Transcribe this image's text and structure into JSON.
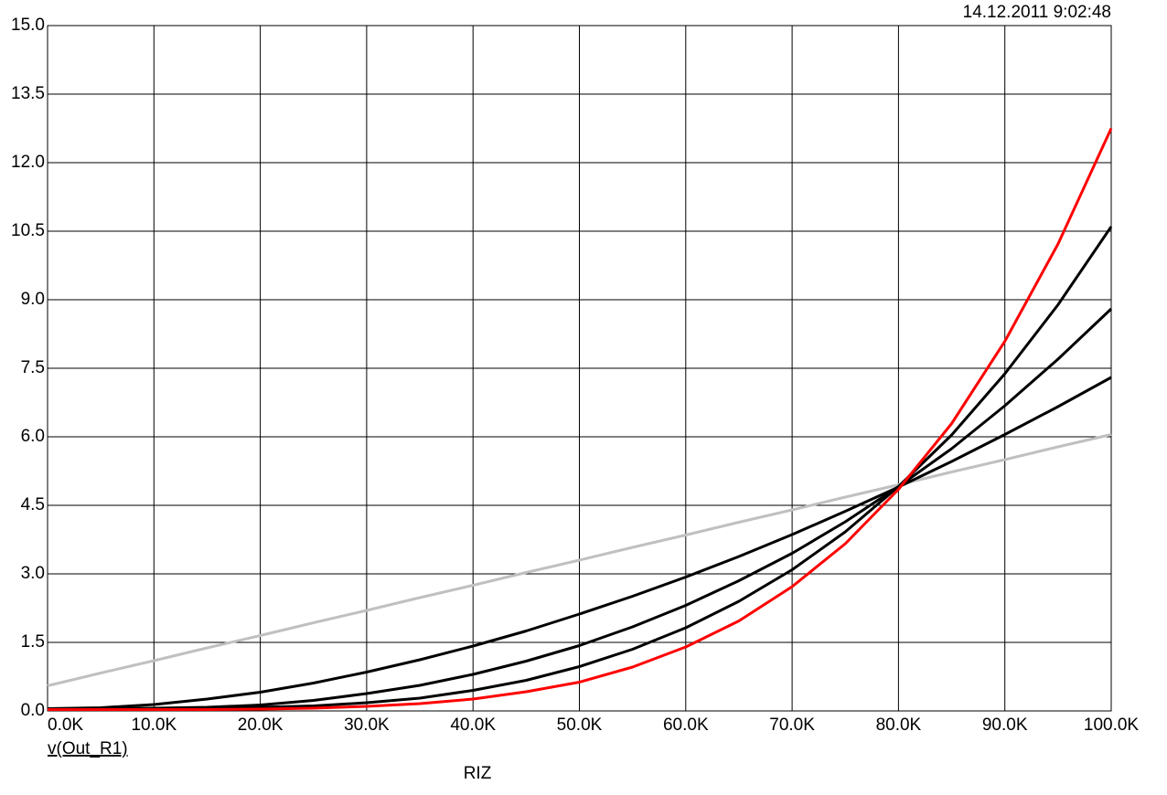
{
  "chart_data": {
    "type": "line",
    "timestamp": "14.12.2011 9:02:48",
    "y_label": "v(Out_R1)",
    "x_label": "RIZ",
    "x": [
      0,
      5000,
      10000,
      15000,
      20000,
      25000,
      30000,
      35000,
      40000,
      45000,
      50000,
      55000,
      60000,
      65000,
      70000,
      75000,
      80000,
      85000,
      90000,
      95000,
      100000
    ],
    "series": [
      {
        "color": "#c0c0c0",
        "values": [
          0.55,
          0.83,
          1.1,
          1.38,
          1.65,
          1.93,
          2.2,
          2.48,
          2.75,
          3.03,
          3.3,
          3.58,
          3.85,
          4.13,
          4.4,
          4.68,
          4.95,
          5.23,
          5.5,
          5.78,
          6.05
        ]
      },
      {
        "color": "#000000",
        "values": [
          0.05,
          0.07,
          0.14,
          0.26,
          0.41,
          0.61,
          0.85,
          1.12,
          1.42,
          1.75,
          2.12,
          2.51,
          2.93,
          3.38,
          3.86,
          4.37,
          4.9,
          5.46,
          6.05,
          6.66,
          7.3
        ]
      },
      {
        "color": "#000000",
        "values": [
          0.05,
          0.05,
          0.06,
          0.08,
          0.13,
          0.23,
          0.38,
          0.56,
          0.8,
          1.09,
          1.43,
          1.84,
          2.31,
          2.85,
          3.45,
          4.14,
          4.91,
          5.74,
          6.68,
          7.7,
          8.8
        ]
      },
      {
        "color": "#000000",
        "values": [
          0.05,
          0.05,
          0.05,
          0.06,
          0.08,
          0.11,
          0.18,
          0.28,
          0.45,
          0.67,
          0.97,
          1.35,
          1.82,
          2.4,
          3.09,
          3.92,
          4.91,
          6.04,
          7.38,
          8.89,
          10.6
        ]
      },
      {
        "color": "#ff0000",
        "values": [
          0.03,
          0.03,
          0.03,
          0.03,
          0.04,
          0.06,
          0.1,
          0.16,
          0.26,
          0.42,
          0.63,
          0.96,
          1.4,
          1.97,
          2.72,
          3.66,
          4.85,
          6.29,
          8.09,
          10.22,
          12.75
        ]
      }
    ],
    "xlim": [
      0,
      100000
    ],
    "ylim": [
      0,
      15
    ],
    "xticks": [
      {
        "value": 0,
        "label": "0.0K"
      },
      {
        "value": 10000,
        "label": "10.0K"
      },
      {
        "value": 20000,
        "label": "20.0K"
      },
      {
        "value": 30000,
        "label": "30.0K"
      },
      {
        "value": 40000,
        "label": "40.0K"
      },
      {
        "value": 50000,
        "label": "50.0K"
      },
      {
        "value": 60000,
        "label": "60.0K"
      },
      {
        "value": 70000,
        "label": "70.0K"
      },
      {
        "value": 80000,
        "label": "80.0K"
      },
      {
        "value": 90000,
        "label": "90.0K"
      },
      {
        "value": 100000,
        "label": "100.0K"
      }
    ],
    "yticks": [
      {
        "value": 0,
        "label": "0.0"
      },
      1.5,
      {
        "value": 3,
        "label": "3.0"
      },
      4.5,
      {
        "value": 6,
        "label": "6.0"
      },
      7.5,
      {
        "value": 9,
        "label": "9.0"
      },
      10.5,
      {
        "value": 12,
        "label": "12.0"
      },
      13.5,
      {
        "value": 15,
        "label": "15.0"
      }
    ],
    "grid": true
  }
}
